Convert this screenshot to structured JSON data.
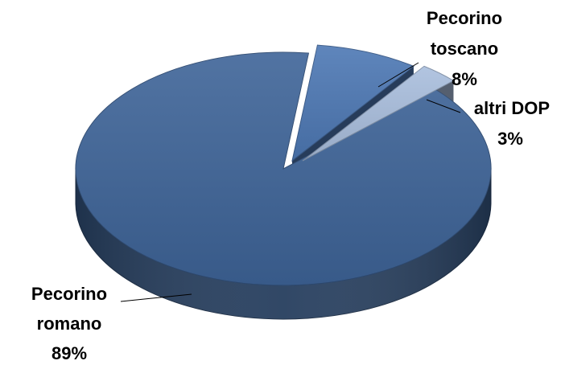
{
  "chart_data": {
    "type": "pie",
    "style": "3d-exploded",
    "title": "",
    "legend": "none",
    "slices": [
      {
        "label": [
          "Pecorino",
          "romano"
        ],
        "value_label": "89%",
        "value": 89,
        "color": "#3E6498"
      },
      {
        "label": [
          "Pecorino",
          "toscano"
        ],
        "value_label": "8%",
        "value": 8,
        "color": "#4D78B4"
      },
      {
        "label": [
          "altri DOP"
        ],
        "value_label": "3%",
        "value": 3,
        "color": "#A9BEDD"
      }
    ]
  }
}
